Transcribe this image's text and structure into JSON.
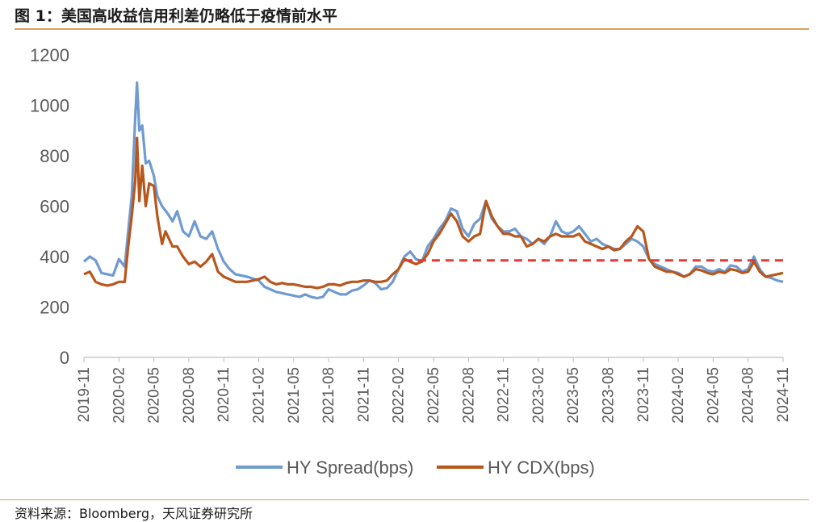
{
  "title": "图 1：美国高收益信用利差仍略低于疫情前水平",
  "source": "资料来源：Bloomberg，天风证券研究所",
  "chart_data": {
    "type": "line",
    "ylim": [
      0,
      1200
    ],
    "yticks": [
      0,
      200,
      400,
      600,
      800,
      1000,
      1200
    ],
    "xticks": [
      "2019-11",
      "2020-02",
      "2020-05",
      "2020-08",
      "2020-11",
      "2021-02",
      "2021-05",
      "2021-08",
      "2021-11",
      "2022-02",
      "2022-05",
      "2022-08",
      "2022-11",
      "2023-02",
      "2023-05",
      "2023-08",
      "2023-11",
      "2024-02",
      "2024-05",
      "2024-08",
      "2024-11"
    ],
    "x_months": [
      0,
      3,
      6,
      9,
      12,
      15,
      18,
      21,
      24,
      27,
      30,
      33,
      36,
      39,
      42,
      45,
      48,
      51,
      54,
      57,
      60
    ],
    "reference_line": {
      "value": 385,
      "from_month": 27.5,
      "to_month": 60,
      "color": "#e03a3a"
    },
    "series": [
      {
        "name": "HY Spread(bps)",
        "color": "#6f9bd1",
        "points": [
          [
            0,
            380
          ],
          [
            0.5,
            400
          ],
          [
            1,
            385
          ],
          [
            1.5,
            335
          ],
          [
            2,
            330
          ],
          [
            2.5,
            325
          ],
          [
            3,
            390
          ],
          [
            3.5,
            360
          ],
          [
            3.8,
            500
          ],
          [
            4.1,
            640
          ],
          [
            4.4,
            950
          ],
          [
            4.55,
            1090
          ],
          [
            4.75,
            900
          ],
          [
            5,
            920
          ],
          [
            5.3,
            770
          ],
          [
            5.6,
            780
          ],
          [
            6,
            720
          ],
          [
            6.3,
            640
          ],
          [
            6.7,
            600
          ],
          [
            7.2,
            570
          ],
          [
            7.6,
            540
          ],
          [
            8,
            580
          ],
          [
            8.5,
            500
          ],
          [
            9,
            480
          ],
          [
            9.5,
            540
          ],
          [
            10,
            480
          ],
          [
            10.5,
            470
          ],
          [
            11,
            500
          ],
          [
            11.5,
            430
          ],
          [
            12,
            380
          ],
          [
            12.5,
            350
          ],
          [
            13,
            330
          ],
          [
            14,
            320
          ],
          [
            15,
            305
          ],
          [
            15.5,
            280
          ],
          [
            16,
            270
          ],
          [
            16.5,
            260
          ],
          [
            17,
            255
          ],
          [
            17.5,
            250
          ],
          [
            18,
            245
          ],
          [
            18.5,
            240
          ],
          [
            19,
            250
          ],
          [
            19.5,
            240
          ],
          [
            20,
            235
          ],
          [
            20.5,
            240
          ],
          [
            21,
            270
          ],
          [
            21.5,
            260
          ],
          [
            22,
            250
          ],
          [
            22.5,
            250
          ],
          [
            23,
            265
          ],
          [
            23.5,
            270
          ],
          [
            24,
            285
          ],
          [
            24.5,
            305
          ],
          [
            25,
            295
          ],
          [
            25.5,
            270
          ],
          [
            26,
            275
          ],
          [
            26.5,
            300
          ],
          [
            27,
            350
          ],
          [
            27.5,
            400
          ],
          [
            28,
            420
          ],
          [
            28.5,
            390
          ],
          [
            29,
            380
          ],
          [
            29.5,
            440
          ],
          [
            30,
            470
          ],
          [
            30.5,
            510
          ],
          [
            31,
            540
          ],
          [
            31.5,
            590
          ],
          [
            32,
            580
          ],
          [
            32.5,
            510
          ],
          [
            33,
            480
          ],
          [
            33.5,
            530
          ],
          [
            34,
            550
          ],
          [
            34.5,
            620
          ],
          [
            35,
            550
          ],
          [
            35.5,
            520
          ],
          [
            36,
            500
          ],
          [
            36.5,
            500
          ],
          [
            37,
            510
          ],
          [
            37.5,
            480
          ],
          [
            38,
            470
          ],
          [
            38.5,
            450
          ],
          [
            39,
            470
          ],
          [
            39.5,
            450
          ],
          [
            40,
            480
          ],
          [
            40.5,
            540
          ],
          [
            41,
            500
          ],
          [
            41.5,
            490
          ],
          [
            42,
            500
          ],
          [
            42.5,
            520
          ],
          [
            43,
            490
          ],
          [
            43.5,
            460
          ],
          [
            44,
            470
          ],
          [
            44.5,
            450
          ],
          [
            45,
            440
          ],
          [
            45.5,
            430
          ],
          [
            46,
            430
          ],
          [
            46.5,
            450
          ],
          [
            47,
            470
          ],
          [
            47.5,
            460
          ],
          [
            48,
            440
          ],
          [
            48.5,
            390
          ],
          [
            49,
            370
          ],
          [
            49.5,
            360
          ],
          [
            50,
            350
          ],
          [
            50.5,
            340
          ],
          [
            51,
            335
          ],
          [
            51.5,
            320
          ],
          [
            52,
            330
          ],
          [
            52.5,
            360
          ],
          [
            53,
            360
          ],
          [
            53.5,
            345
          ],
          [
            54,
            340
          ],
          [
            54.5,
            350
          ],
          [
            55,
            340
          ],
          [
            55.5,
            365
          ],
          [
            56,
            360
          ],
          [
            56.5,
            340
          ],
          [
            57,
            350
          ],
          [
            57.5,
            400
          ],
          [
            58,
            350
          ],
          [
            58.5,
            320
          ],
          [
            59,
            315
          ],
          [
            59.5,
            305
          ],
          [
            60,
            300
          ]
        ]
      },
      {
        "name": "HY CDX(bps)",
        "color": "#b8561c",
        "points": [
          [
            0,
            330
          ],
          [
            0.5,
            340
          ],
          [
            1,
            300
          ],
          [
            1.5,
            290
          ],
          [
            2,
            285
          ],
          [
            2.5,
            290
          ],
          [
            3,
            300
          ],
          [
            3.5,
            300
          ],
          [
            3.8,
            440
          ],
          [
            4.1,
            560
          ],
          [
            4.4,
            700
          ],
          [
            4.55,
            870
          ],
          [
            4.75,
            620
          ],
          [
            5,
            760
          ],
          [
            5.3,
            600
          ],
          [
            5.6,
            690
          ],
          [
            6,
            680
          ],
          [
            6.3,
            560
          ],
          [
            6.7,
            450
          ],
          [
            7,
            500
          ],
          [
            7.3,
            470
          ],
          [
            7.6,
            440
          ],
          [
            8,
            440
          ],
          [
            8.5,
            400
          ],
          [
            9,
            370
          ],
          [
            9.5,
            380
          ],
          [
            10,
            360
          ],
          [
            10.5,
            380
          ],
          [
            11,
            410
          ],
          [
            11.5,
            340
          ],
          [
            12,
            320
          ],
          [
            12.5,
            310
          ],
          [
            13,
            300
          ],
          [
            14,
            300
          ],
          [
            15,
            310
          ],
          [
            15.5,
            320
          ],
          [
            16,
            300
          ],
          [
            16.5,
            290
          ],
          [
            17,
            295
          ],
          [
            17.5,
            290
          ],
          [
            18,
            290
          ],
          [
            18.5,
            285
          ],
          [
            19,
            280
          ],
          [
            19.5,
            280
          ],
          [
            20,
            275
          ],
          [
            20.5,
            280
          ],
          [
            21,
            290
          ],
          [
            21.5,
            290
          ],
          [
            22,
            285
          ],
          [
            22.5,
            295
          ],
          [
            23,
            300
          ],
          [
            23.5,
            300
          ],
          [
            24,
            305
          ],
          [
            24.5,
            305
          ],
          [
            25,
            300
          ],
          [
            25.5,
            300
          ],
          [
            26,
            305
          ],
          [
            26.5,
            330
          ],
          [
            27,
            350
          ],
          [
            27.5,
            390
          ],
          [
            28,
            380
          ],
          [
            28.5,
            370
          ],
          [
            29,
            380
          ],
          [
            29.5,
            410
          ],
          [
            30,
            460
          ],
          [
            30.5,
            490
          ],
          [
            31,
            530
          ],
          [
            31.5,
            570
          ],
          [
            32,
            540
          ],
          [
            32.5,
            480
          ],
          [
            33,
            460
          ],
          [
            33.5,
            480
          ],
          [
            34,
            490
          ],
          [
            34.5,
            620
          ],
          [
            35,
            560
          ],
          [
            35.5,
            520
          ],
          [
            36,
            490
          ],
          [
            36.5,
            490
          ],
          [
            37,
            480
          ],
          [
            37.5,
            480
          ],
          [
            38,
            440
          ],
          [
            38.5,
            450
          ],
          [
            39,
            470
          ],
          [
            39.5,
            460
          ],
          [
            40,
            480
          ],
          [
            40.5,
            490
          ],
          [
            41,
            480
          ],
          [
            41.5,
            480
          ],
          [
            42,
            480
          ],
          [
            42.5,
            490
          ],
          [
            43,
            460
          ],
          [
            43.5,
            450
          ],
          [
            44,
            440
          ],
          [
            44.5,
            430
          ],
          [
            45,
            440
          ],
          [
            45.5,
            425
          ],
          [
            46,
            430
          ],
          [
            46.5,
            460
          ],
          [
            47,
            480
          ],
          [
            47.5,
            520
          ],
          [
            48,
            500
          ],
          [
            48.5,
            390
          ],
          [
            49,
            360
          ],
          [
            49.5,
            350
          ],
          [
            50,
            340
          ],
          [
            50.5,
            340
          ],
          [
            51,
            330
          ],
          [
            51.5,
            320
          ],
          [
            52,
            330
          ],
          [
            52.5,
            350
          ],
          [
            53,
            345
          ],
          [
            53.5,
            335
          ],
          [
            54,
            330
          ],
          [
            54.5,
            340
          ],
          [
            55,
            335
          ],
          [
            55.5,
            350
          ],
          [
            56,
            345
          ],
          [
            56.5,
            335
          ],
          [
            57,
            340
          ],
          [
            57.5,
            380
          ],
          [
            58,
            340
          ],
          [
            58.5,
            320
          ],
          [
            59,
            325
          ],
          [
            59.5,
            330
          ],
          [
            60,
            335
          ]
        ]
      }
    ]
  }
}
